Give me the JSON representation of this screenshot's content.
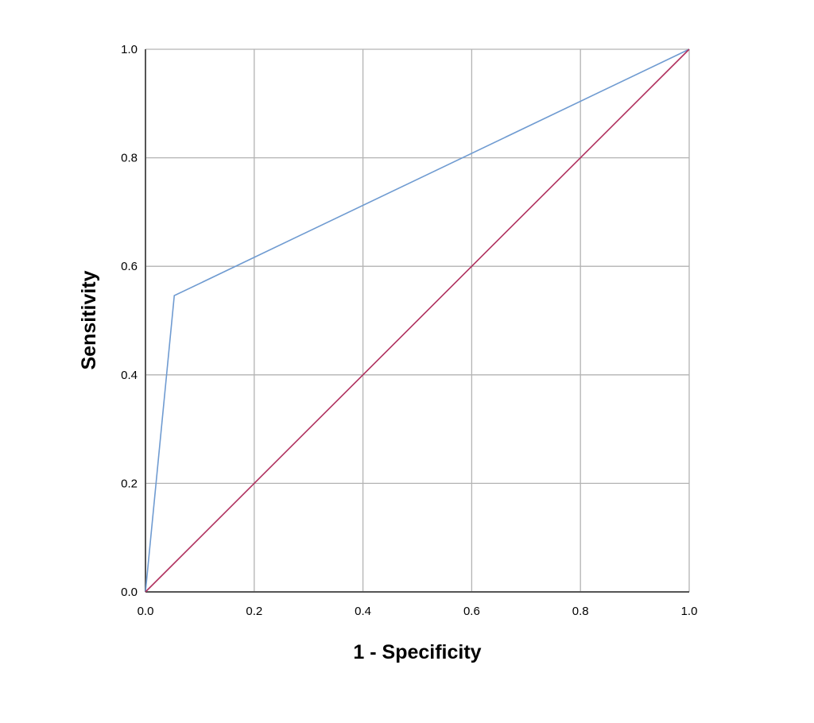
{
  "chart_data": {
    "type": "line",
    "title": "",
    "xlabel": "1 - Specificity",
    "ylabel": "Sensitivity",
    "xlim": [
      0,
      1
    ],
    "ylim": [
      0,
      1
    ],
    "grid": true,
    "xticks": [
      "0.0",
      "0.2",
      "0.4",
      "0.6",
      "0.8",
      "1.0"
    ],
    "yticks": [
      "0.0",
      "0.2",
      "0.4",
      "0.6",
      "0.8",
      "1.0"
    ],
    "series": [
      {
        "color": "#6f9bd1",
        "x": [
          0,
          0.053,
          1
        ],
        "y": [
          0,
          0.546,
          1
        ]
      },
      {
        "color": "#b0305e",
        "x": [
          0,
          1
        ],
        "y": [
          0,
          1
        ]
      }
    ]
  }
}
